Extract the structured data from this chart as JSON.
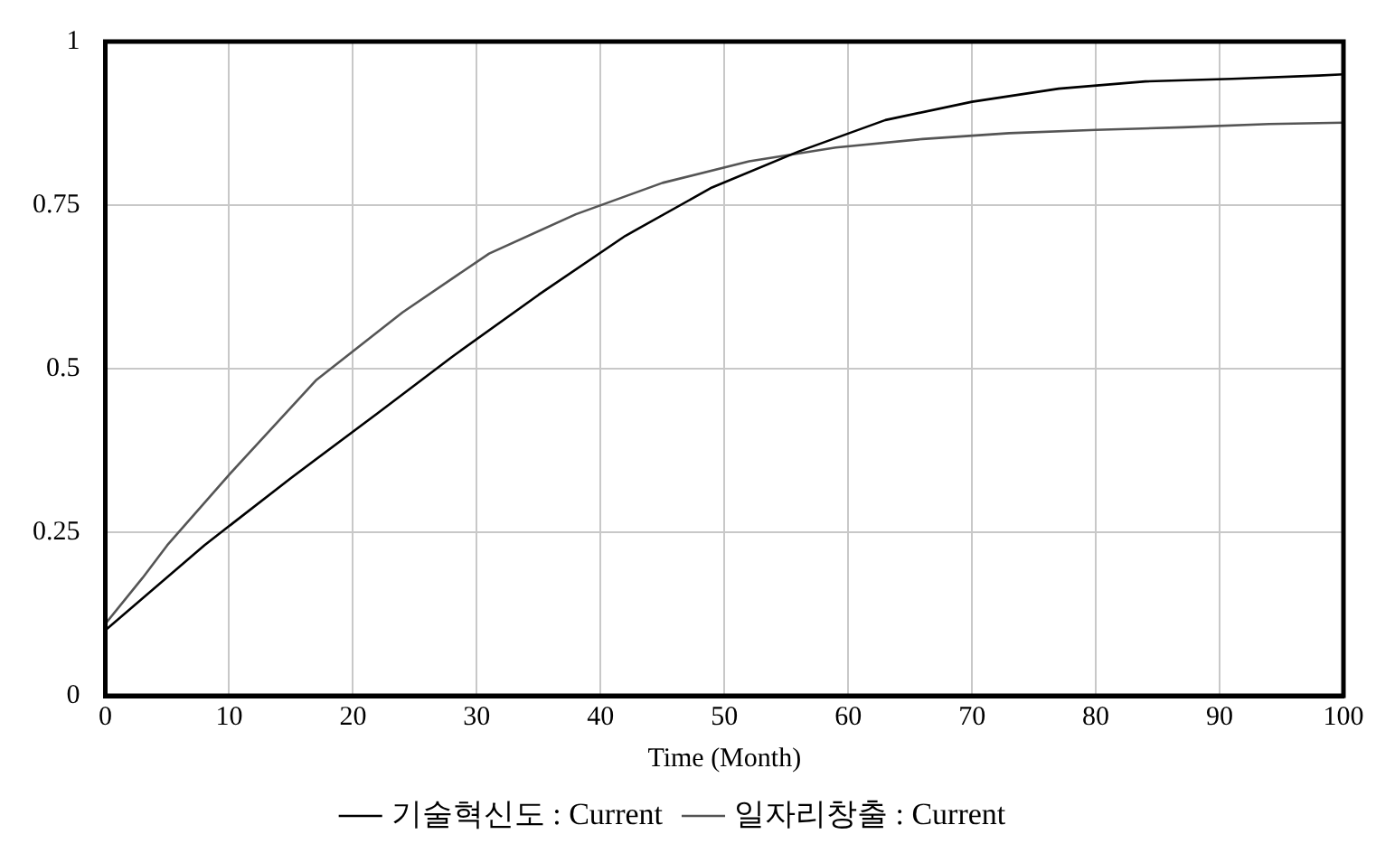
{
  "chart_data": {
    "type": "line",
    "xlabel": "Time (Month)",
    "xlim": [
      0,
      100
    ],
    "xticks": [
      0,
      10,
      20,
      30,
      40,
      50,
      60,
      70,
      80,
      90,
      100
    ],
    "ylim": [
      0,
      1
    ],
    "yticks": [
      0,
      0.25,
      0.5,
      0.75,
      1
    ],
    "grid": true,
    "legend": "bottom",
    "marker": "none",
    "line_style": "solid",
    "series": [
      {
        "name": "기술혁신도 : Current",
        "color": "#000000",
        "x": [
          0,
          8,
          15,
          22,
          28,
          35,
          42,
          49,
          56,
          63,
          70,
          77,
          84,
          91,
          98,
          100
        ],
        "values": [
          0.1,
          0.23,
          0.333,
          0.432,
          0.518,
          0.613,
          0.703,
          0.777,
          0.832,
          0.88,
          0.908,
          0.928,
          0.939,
          0.943,
          0.948,
          0.95
        ]
      },
      {
        "name": "일자리창출 : Current",
        "color": "#555555",
        "x": [
          0,
          3,
          5,
          10,
          17,
          24,
          31,
          38,
          45,
          52,
          59,
          66,
          73,
          80,
          87,
          94,
          100
        ],
        "values": [
          0.11,
          0.18,
          0.23,
          0.338,
          0.482,
          0.586,
          0.676,
          0.736,
          0.784,
          0.817,
          0.838,
          0.851,
          0.86,
          0.865,
          0.869,
          0.874,
          0.876
        ]
      }
    ]
  }
}
